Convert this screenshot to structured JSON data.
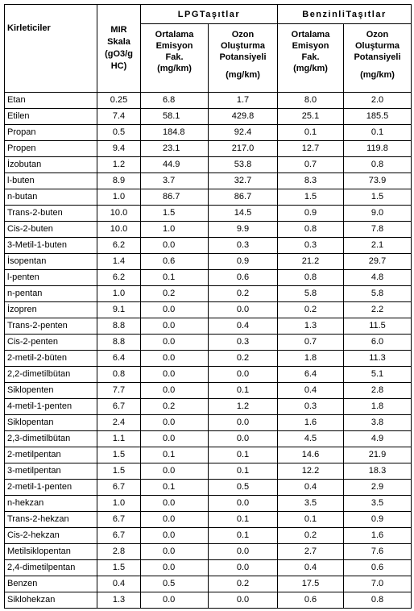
{
  "header": {
    "pollutants": "Kirleticiler",
    "mir_lines": [
      "MIR",
      "Skala",
      "(gO3/g",
      "HC)"
    ],
    "lpg_group": "LPGTaşıtlar",
    "gasoline_group": "BenzinliTaşıtlar",
    "emission_lines": [
      "Ortalama",
      "Emisyon",
      "Fak."
    ],
    "emission_unit": "(mg/km)",
    "ozone_lines": [
      "Ozon",
      "Oluşturma",
      "Potansiyeli"
    ],
    "ozone_unit": "(mg/km)"
  },
  "rows": [
    {
      "name": "Etan",
      "mir": "0.25",
      "lpg_em": "6.8",
      "lpg_oz": "1.7",
      "gas_em": "8.0",
      "gas_oz": "2.0"
    },
    {
      "name": "Etilen",
      "mir": "7.4",
      "lpg_em": "58.1",
      "lpg_oz": "429.8",
      "gas_em": "25.1",
      "gas_oz": "185.5"
    },
    {
      "name": "Propan",
      "mir": "0.5",
      "lpg_em": "184.8",
      "lpg_oz": "92.4",
      "gas_em": "0.1",
      "gas_oz": "0.1"
    },
    {
      "name": "Propen",
      "mir": "9.4",
      "lpg_em": "23.1",
      "lpg_oz": "217.0",
      "gas_em": "12.7",
      "gas_oz": "119.8"
    },
    {
      "name": "İzobutan",
      "mir": "1.2",
      "lpg_em": "44.9",
      "lpg_oz": "53.8",
      "gas_em": "0.7",
      "gas_oz": "0.8"
    },
    {
      "name": "l-buten",
      "mir": "8.9",
      "lpg_em": "3.7",
      "lpg_oz": "32.7",
      "gas_em": "8.3",
      "gas_oz": "73.9"
    },
    {
      "name": "n-butan",
      "mir": "1.0",
      "lpg_em": "86.7",
      "lpg_oz": "86.7",
      "gas_em": "1.5",
      "gas_oz": "1.5"
    },
    {
      "name": "Trans-2-buten",
      "mir": "10.0",
      "lpg_em": "1.5",
      "lpg_oz": "14.5",
      "gas_em": "0.9",
      "gas_oz": "9.0"
    },
    {
      "name": "Cis-2-buten",
      "mir": "10.0",
      "lpg_em": "1.0",
      "lpg_oz": "9.9",
      "gas_em": "0.8",
      "gas_oz": "7.8"
    },
    {
      "name": "3-Metil-1-buten",
      "mir": "6.2",
      "lpg_em": "0.0",
      "lpg_oz": "0.3",
      "gas_em": "0.3",
      "gas_oz": "2.1"
    },
    {
      "name": "İsopentan",
      "mir": "1.4",
      "lpg_em": "0.6",
      "lpg_oz": "0.9",
      "gas_em": "21.2",
      "gas_oz": "29.7"
    },
    {
      "name": "l-penten",
      "mir": "6.2",
      "lpg_em": "0.1",
      "lpg_oz": "0.6",
      "gas_em": "0.8",
      "gas_oz": "4.8"
    },
    {
      "name": "n-pentan",
      "mir": "1.0",
      "lpg_em": "0.2",
      "lpg_oz": "0.2",
      "gas_em": "5.8",
      "gas_oz": "5.8"
    },
    {
      "name": "İzopren",
      "mir": "9.1",
      "lpg_em": "0.0",
      "lpg_oz": "0.0",
      "gas_em": "0.2",
      "gas_oz": "2.2"
    },
    {
      "name": "Trans-2-penten",
      "mir": "8.8",
      "lpg_em": "0.0",
      "lpg_oz": "0.4",
      "gas_em": "1.3",
      "gas_oz": "11.5"
    },
    {
      "name": "Cis-2-penten",
      "mir": "8.8",
      "lpg_em": "0.0",
      "lpg_oz": "0.3",
      "gas_em": "0.7",
      "gas_oz": "6.0"
    },
    {
      "name": "2-metil-2-büten",
      "mir": "6.4",
      "lpg_em": "0.0",
      "lpg_oz": "0.2",
      "gas_em": "1.8",
      "gas_oz": "11.3"
    },
    {
      "name": "2,2-dimetilbütan",
      "mir": "0.8",
      "lpg_em": "0.0",
      "lpg_oz": "0.0",
      "gas_em": "6.4",
      "gas_oz": "5.1"
    },
    {
      "name": "Siklopenten",
      "mir": "7.7",
      "lpg_em": "0.0",
      "lpg_oz": "0.1",
      "gas_em": "0.4",
      "gas_oz": "2.8"
    },
    {
      "name": "4-metil-1-penten",
      "mir": "6.7",
      "lpg_em": "0.2",
      "lpg_oz": "1.2",
      "gas_em": "0.3",
      "gas_oz": "1.8"
    },
    {
      "name": "Siklopentan",
      "mir": "2.4",
      "lpg_em": "0.0",
      "lpg_oz": "0.0",
      "gas_em": "1.6",
      "gas_oz": "3.8"
    },
    {
      "name": "2,3-dimetilbütan",
      "mir": "1.1",
      "lpg_em": "0.0",
      "lpg_oz": "0.0",
      "gas_em": "4.5",
      "gas_oz": "4.9"
    },
    {
      "name": "2-metilpentan",
      "mir": "1.5",
      "lpg_em": "0.1",
      "lpg_oz": "0.1",
      "gas_em": "14.6",
      "gas_oz": "21.9"
    },
    {
      "name": "3-metilpentan",
      "mir": "1.5",
      "lpg_em": "0.0",
      "lpg_oz": "0.1",
      "gas_em": "12.2",
      "gas_oz": "18.3"
    },
    {
      "name": "2-metil-1-penten",
      "mir": "6.7",
      "lpg_em": "0.1",
      "lpg_oz": "0.5",
      "gas_em": "0.4",
      "gas_oz": "2.9"
    },
    {
      "name": "n-hekzan",
      "mir": "1.0",
      "lpg_em": "0.0",
      "lpg_oz": "0.0",
      "gas_em": "3.5",
      "gas_oz": "3.5"
    },
    {
      "name": "Trans-2-hekzan",
      "mir": "6.7",
      "lpg_em": "0.0",
      "lpg_oz": "0.1",
      "gas_em": "0.1",
      "gas_oz": "0.9"
    },
    {
      "name": "Cis-2-hekzan",
      "mir": "6.7",
      "lpg_em": "0.0",
      "lpg_oz": "0.1",
      "gas_em": "0.2",
      "gas_oz": "1.6"
    },
    {
      "name": "Metilsiklopentan",
      "mir": "2.8",
      "lpg_em": "0.0",
      "lpg_oz": "0.0",
      "gas_em": "2.7",
      "gas_oz": "7.6"
    },
    {
      "name": "2,4-dimetilpentan",
      "mir": "1.5",
      "lpg_em": "0.0",
      "lpg_oz": "0.0",
      "gas_em": "0.4",
      "gas_oz": "0.6"
    },
    {
      "name": "Benzen",
      "mir": "0.4",
      "lpg_em": "0.5",
      "lpg_oz": "0.2",
      "gas_em": "17.5",
      "gas_oz": "7.0"
    },
    {
      "name": "Siklohekzan",
      "mir": "1.3",
      "lpg_em": "0.0",
      "lpg_oz": "0.0",
      "gas_em": "0.6",
      "gas_oz": "0.8"
    }
  ]
}
